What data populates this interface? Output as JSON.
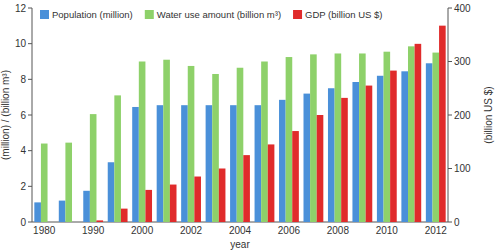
{
  "chart_data": {
    "type": "bar",
    "x_label": "year",
    "y_label": "(million) / (billion m³)",
    "y2_label": "(billion US $)",
    "categories": [
      "1980",
      null,
      "1990",
      null,
      "2000",
      null,
      "2002",
      null,
      "2004",
      null,
      "2006",
      null,
      "2008",
      null,
      "2010",
      null,
      "2012"
    ],
    "series": [
      {
        "name": "Population (million)",
        "color": "#4a90d9",
        "values": [
          1.1,
          1.2,
          1.75,
          3.35,
          6.45,
          6.55,
          6.55,
          6.55,
          6.55,
          6.55,
          6.85,
          7.2,
          7.5,
          7.85,
          8.2,
          8.45,
          8.9
        ]
      },
      {
        "name": "Water use amount (billion m³)",
        "color": "#8ed16a",
        "values": [
          4.4,
          4.45,
          6.05,
          7.1,
          9.0,
          9.1,
          8.75,
          8.3,
          8.65,
          9.0,
          9.25,
          9.4,
          9.45,
          9.45,
          9.55,
          9.85,
          9.5
        ]
      },
      {
        "name": "GDP (billion US $)",
        "color": "#e02b2b",
        "axis": "y2",
        "values": [
          null,
          null,
          3,
          25,
          60,
          70,
          85,
          100,
          125,
          145,
          170,
          200,
          232,
          255,
          283,
          333,
          367
        ]
      }
    ],
    "ylim": [
      0,
      12
    ],
    "yticks": [
      0,
      2,
      4,
      6,
      8,
      10,
      12
    ],
    "y2lim": [
      0,
      400
    ],
    "y2ticks": [
      0,
      100,
      200,
      300,
      400
    ],
    "legend": "top-left",
    "grid": false
  }
}
